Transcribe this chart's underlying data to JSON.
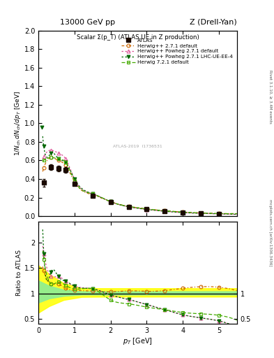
{
  "title_top": "13000 GeV pp",
  "title_right": "Z (Drell-Yan)",
  "plot_title": "Scalar Σ(p_T) (ATLAS UE in Z production)",
  "ylabel_main": "1/N_{ch} dN_{ch}/dp_T [GeV]",
  "ylabel_ratio": "Ratio to ATLAS",
  "xlabel": "p_T [GeV]",
  "rivet_label": "Rivet 3.1.10, ≥ 3.4M events",
  "mcplots_label": "mcplots.cern.ch [arXiv:1306.3436]",
  "watermark": "ATLAS-2019  I1736531",
  "atlas_x": [
    0.15,
    0.35,
    0.55,
    0.75,
    1.0,
    1.5,
    2.0,
    2.5,
    3.0,
    3.5,
    4.0,
    4.5,
    5.0
  ],
  "atlas_y": [
    0.36,
    0.53,
    0.51,
    0.5,
    0.35,
    0.22,
    0.15,
    0.1,
    0.075,
    0.055,
    0.04,
    0.03,
    0.025
  ],
  "atlas_yerr": [
    0.04,
    0.03,
    0.03,
    0.03,
    0.02,
    0.01,
    0.008,
    0.006,
    0.005,
    0.004,
    0.003,
    0.003,
    0.003
  ],
  "hw271_x": [
    0.15,
    0.35,
    0.55,
    0.75,
    1.0,
    1.5,
    2.0,
    2.5,
    3.0,
    3.5,
    4.0,
    4.5,
    5.0
  ],
  "hw271_y": [
    0.52,
    0.63,
    0.6,
    0.55,
    0.37,
    0.23,
    0.155,
    0.105,
    0.078,
    0.058,
    0.044,
    0.034,
    0.028
  ],
  "hwp271_x": [
    0.15,
    0.35,
    0.55,
    0.75,
    1.0,
    1.5,
    2.0,
    2.5,
    3.0,
    3.5,
    4.0,
    4.5,
    5.0
  ],
  "hwp271_y": [
    0.64,
    0.71,
    0.68,
    0.62,
    0.4,
    0.24,
    0.155,
    0.1,
    0.072,
    0.052,
    0.038,
    0.03,
    0.025
  ],
  "hwp271lhc_x": [
    0.1,
    0.15,
    0.35,
    0.55,
    0.75,
    1.0,
    1.5,
    2.0,
    2.5,
    3.0,
    3.5,
    4.0,
    4.5,
    5.0
  ],
  "hwp271lhc_y": [
    0.96,
    0.75,
    0.68,
    0.62,
    0.58,
    0.4,
    0.24,
    0.155,
    0.1,
    0.072,
    0.052,
    0.038,
    0.03,
    0.025
  ],
  "hw721_x": [
    0.15,
    0.35,
    0.55,
    0.75,
    1.0,
    1.5,
    2.0,
    2.5,
    3.0,
    3.5,
    4.0,
    4.5,
    5.0
  ],
  "hw721_y": [
    0.6,
    0.63,
    0.62,
    0.58,
    0.38,
    0.24,
    0.155,
    0.105,
    0.078,
    0.058,
    0.044,
    0.034,
    0.028
  ],
  "ratio_hw271": [
    1.44,
    1.19,
    1.18,
    1.1,
    1.06,
    1.045,
    1.03,
    1.05,
    1.04,
    1.055,
    1.1,
    1.13,
    1.12
  ],
  "ratio_hwp271": [
    1.78,
    1.34,
    1.33,
    1.24,
    1.14,
    1.09,
    0.97,
    0.88,
    0.78,
    0.68,
    0.58,
    0.52,
    0.46
  ],
  "ratio_hwp271lhc": [
    2.67,
    1.78,
    1.42,
    1.33,
    1.24,
    1.14,
    1.09,
    0.97,
    0.88,
    0.78,
    0.68,
    0.58,
    0.52,
    0.46
  ],
  "ratio_hw721": [
    1.67,
    1.19,
    1.22,
    1.16,
    1.086,
    1.09,
    0.87,
    0.795,
    0.73,
    0.68,
    0.625,
    0.6,
    0.57
  ],
  "green_band_x": [
    0.0,
    0.3,
    0.7,
    1.2,
    2.0,
    5.5
  ],
  "green_band_lo": [
    0.82,
    0.9,
    0.95,
    0.975,
    0.975,
    0.975
  ],
  "green_band_hi": [
    1.25,
    1.15,
    1.07,
    1.04,
    1.04,
    1.04
  ],
  "yellow_band_x": [
    0.0,
    0.3,
    0.7,
    1.2,
    2.0,
    5.5
  ],
  "yellow_band_lo": [
    0.62,
    0.75,
    0.87,
    0.93,
    0.935,
    0.935
  ],
  "yellow_band_hi": [
    1.55,
    1.38,
    1.2,
    1.1,
    1.1,
    1.1
  ],
  "color_hw271": "#cc6600",
  "color_hwp271": "#dd5599",
  "color_hwp271lhc": "#006600",
  "color_hw721": "#44aa00",
  "color_atlas": "#1a0a00",
  "xlim": [
    0.0,
    5.5
  ],
  "ylim_main": [
    0.0,
    2.0
  ],
  "ylim_ratio": [
    0.4,
    2.4
  ]
}
